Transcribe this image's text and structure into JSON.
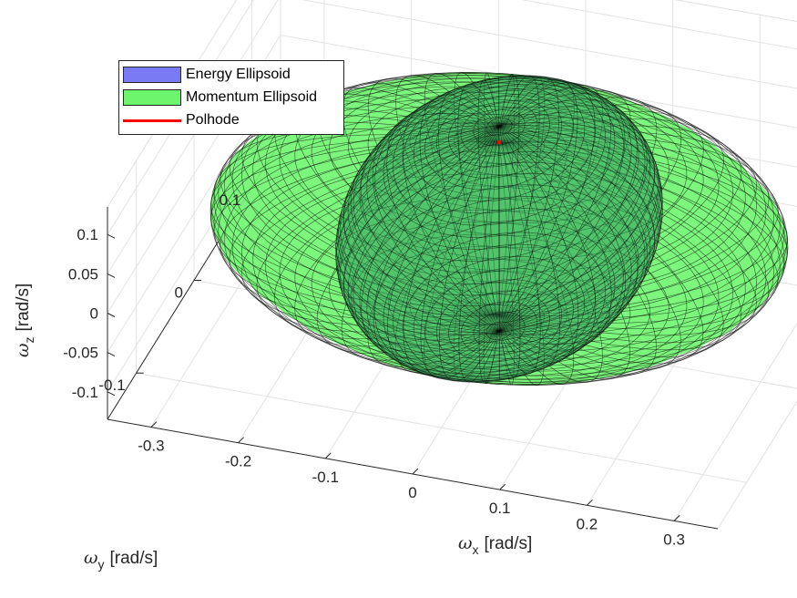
{
  "chart_data": {
    "type": "surface3d",
    "xlabel": {
      "symbol": "ω",
      "subscript": "x",
      "unit": "[rad/s]"
    },
    "ylabel": {
      "symbol": "ω",
      "subscript": "y",
      "unit": "[rad/s]"
    },
    "zlabel": {
      "symbol": "ω",
      "subscript": "z",
      "unit": "[rad/s]"
    },
    "x_ticks": [
      "-0.3",
      "-0.2",
      "-0.1",
      "0",
      "0.1",
      "0.2",
      "0.3"
    ],
    "y_ticks": [
      "0.1",
      "0",
      "-0.1"
    ],
    "z_ticks": [
      "0.1",
      "0.05",
      "0",
      "-0.05",
      "-0.1"
    ],
    "xlim": [
      -0.35,
      0.35
    ],
    "ylim": [
      -0.15,
      0.15
    ],
    "zlim": [
      -0.135,
      0.135
    ],
    "grid": true,
    "legend_position": "top-left",
    "series": [
      {
        "name": "Energy Ellipsoid",
        "kind": "surface",
        "color": "#6f6ff7",
        "semi_axes": [
          0.17,
          0.12,
          0.13
        ]
      },
      {
        "name": "Momentum Ellipsoid",
        "kind": "surface",
        "color": "#6ef56e",
        "semi_axes": [
          0.32,
          0.13,
          0.11
        ]
      },
      {
        "name": "Polhode",
        "kind": "line",
        "color": "#ff0000",
        "points": [
          [
            0,
            0,
            0.11
          ]
        ]
      }
    ]
  },
  "legend": {
    "items": [
      {
        "label": "Energy Ellipsoid",
        "color": "#7a7af5",
        "kind": "patch"
      },
      {
        "label": "Momentum Ellipsoid",
        "color": "#6ef56e",
        "kind": "patch"
      },
      {
        "label": "Polhode",
        "color": "#ff0000",
        "kind": "line"
      }
    ]
  }
}
